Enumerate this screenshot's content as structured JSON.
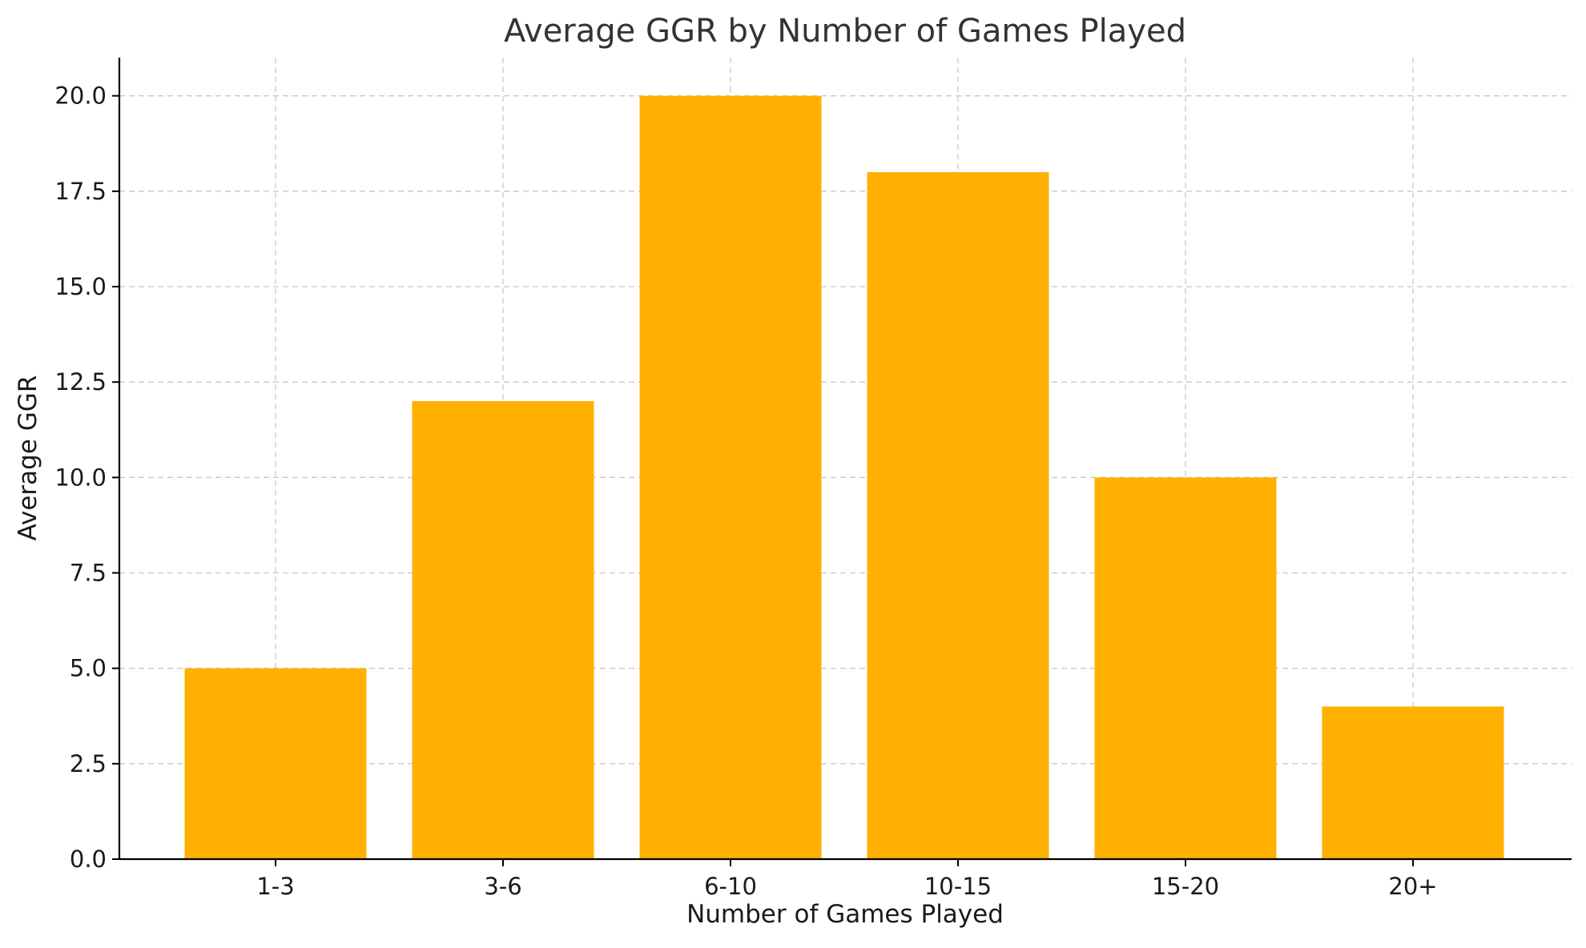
{
  "chart_data": {
    "type": "bar",
    "title": "Average GGR by Number of Games Played",
    "xlabel": "Number of Games Played",
    "ylabel": "Average GGR",
    "categories": [
      "1-3",
      "3-6",
      "6-10",
      "10-15",
      "15-20",
      "20+"
    ],
    "values": [
      5,
      12,
      20,
      18,
      10,
      4
    ],
    "ylim": [
      0,
      21
    ],
    "yticks": [
      "0.0",
      "2.5",
      "5.0",
      "7.5",
      "10.0",
      "12.5",
      "15.0",
      "17.5",
      "20.0"
    ],
    "grid": true,
    "bar_color": "#FFB000",
    "legend": null
  }
}
